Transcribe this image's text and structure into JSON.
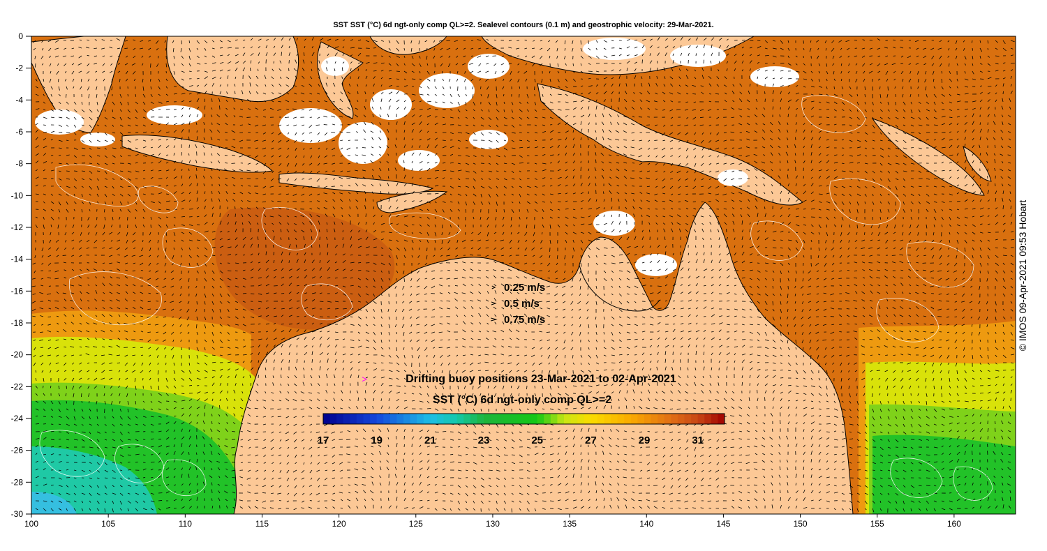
{
  "title": "SST SST (°C) 6d ngt-only comp QL>=2. Sealevel contours (0.1 m) and geostrophic velocity: 29-Mar-2021.",
  "credit": "© IMOS 09-Apr-2021 09:53 Hobart",
  "axes": {
    "x_range": [
      100,
      164
    ],
    "y_range": [
      -30,
      0
    ],
    "x_ticks": [
      "100",
      "105",
      "110",
      "115",
      "120",
      "125",
      "130",
      "135",
      "140",
      "145",
      "150",
      "155",
      "160"
    ],
    "y_ticks": [
      "0",
      "-2",
      "-4",
      "-6",
      "-8",
      "-10",
      "-12",
      "-14",
      "-16",
      "-18",
      "-20",
      "-22",
      "-24",
      "-26",
      "-28",
      "-30"
    ]
  },
  "velocity_legend": [
    {
      "label": "0.25 m/s",
      "speed": 0.25
    },
    {
      "label": "0.5 m/s",
      "speed": 0.5
    },
    {
      "label": "0.75 m/s",
      "speed": 0.75
    }
  ],
  "buoy_legend": {
    "symbol": ">",
    "label": "Drifting buoy positions 23-Mar-2021 to 02-Apr-2021",
    "color": "#ff00ff"
  },
  "colorbar": {
    "title": "SST (°C) 6d ngt-only comp QL>=2",
    "min": 17,
    "max": 32,
    "ticks": [
      "17",
      "19",
      "21",
      "23",
      "25",
      "27",
      "29",
      "31"
    ]
  },
  "colors": {
    "land": "#fcc896",
    "warm_sea": "#d9700f",
    "hot_sea": "#c75a12",
    "mid_sea": "#ee9a10",
    "yellow_sea": "#d9e20a",
    "green_sea": "#22c228",
    "teal_sea": "#1fc9a5",
    "cyan_sea": "#35bfe0",
    "cloud": "#ffffff",
    "buoy": "#ff00ff"
  }
}
